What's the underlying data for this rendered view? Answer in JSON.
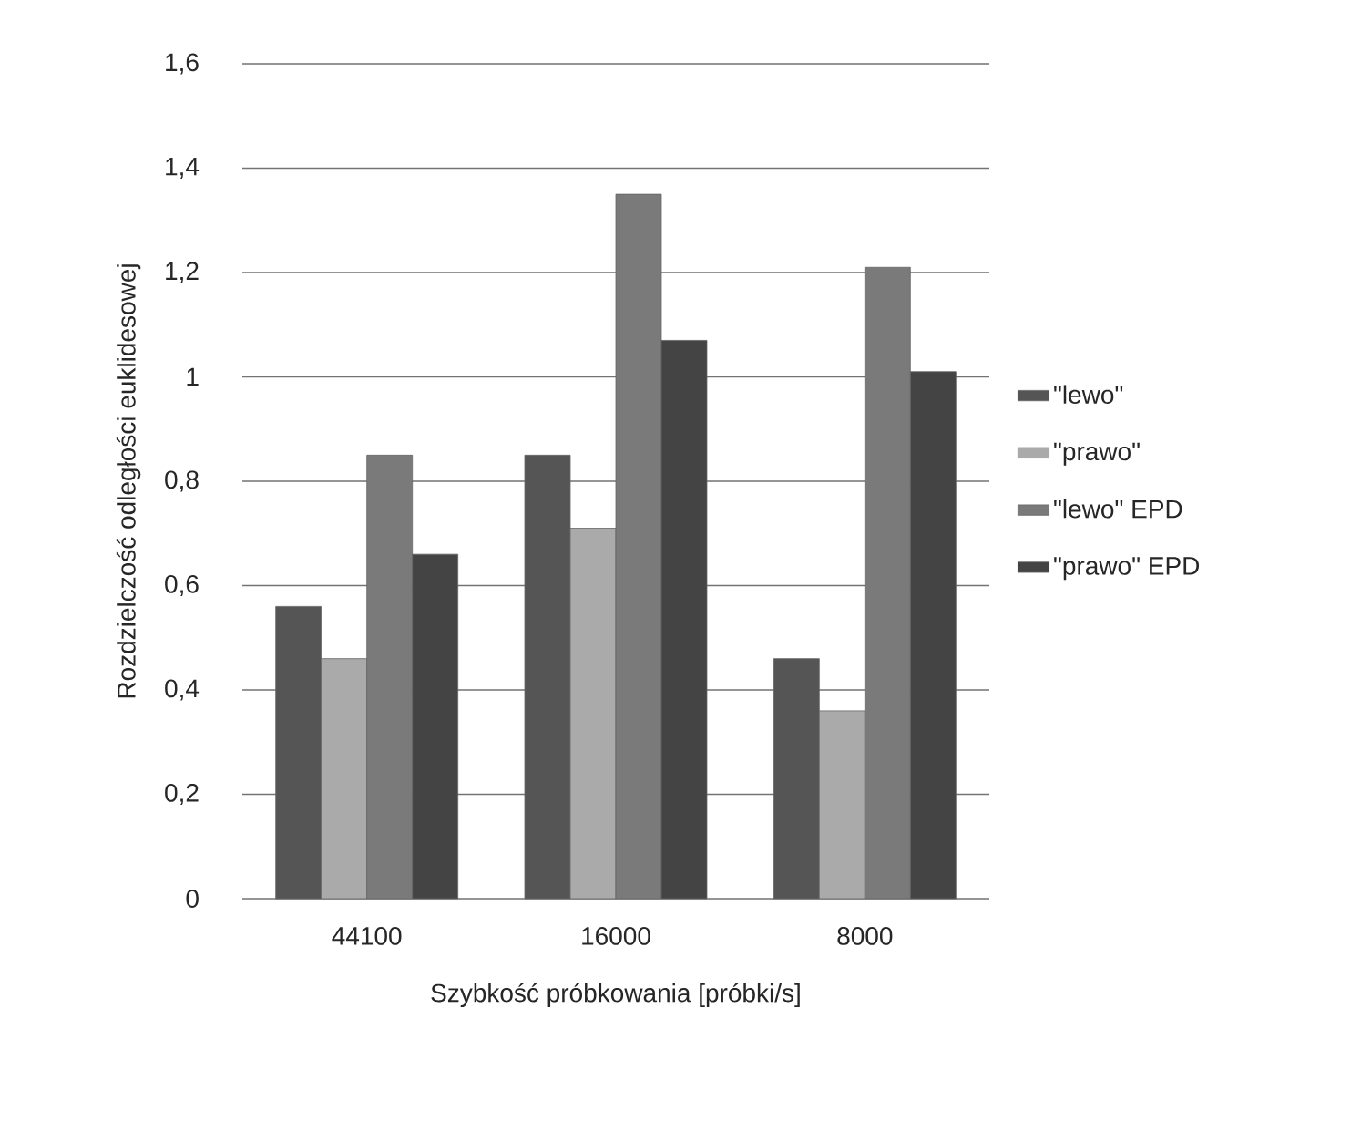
{
  "chart_data": {
    "type": "bar",
    "xlabel": "Szybkość próbkowania [próbki/s]",
    "ylabel": "Rozdzielczość odległości euklidesowej",
    "categories": [
      "44100",
      "16000",
      "8000"
    ],
    "series": [
      {
        "name": "\"lewo\"",
        "color": "#555555",
        "values": [
          0.56,
          0.85,
          0.46
        ]
      },
      {
        "name": "\"prawo\"",
        "color": "#aaaaaa",
        "values": [
          0.46,
          0.71,
          0.36
        ]
      },
      {
        "name": "\"lewo\" EPD",
        "color": "#7a7a7a",
        "values": [
          0.85,
          1.35,
          1.21
        ]
      },
      {
        "name": "\"prawo\" EPD",
        "color": "#444444",
        "values": [
          0.66,
          1.07,
          1.01
        ]
      }
    ],
    "ylim": [
      0,
      1.6
    ],
    "yticks": [
      0,
      {
        "value": 0.2,
        "label": "0,2"
      },
      {
        "value": 0.4,
        "label": "0,4"
      },
      {
        "value": 0.6,
        "label": "0,6"
      },
      {
        "value": 0.8,
        "label": "0,8"
      },
      1,
      {
        "value": 1.2,
        "label": "1,2"
      },
      {
        "value": 1.4,
        "label": "1,4"
      },
      {
        "value": 1.6,
        "label": "1,6"
      }
    ],
    "grid": "y",
    "legend": "right"
  }
}
